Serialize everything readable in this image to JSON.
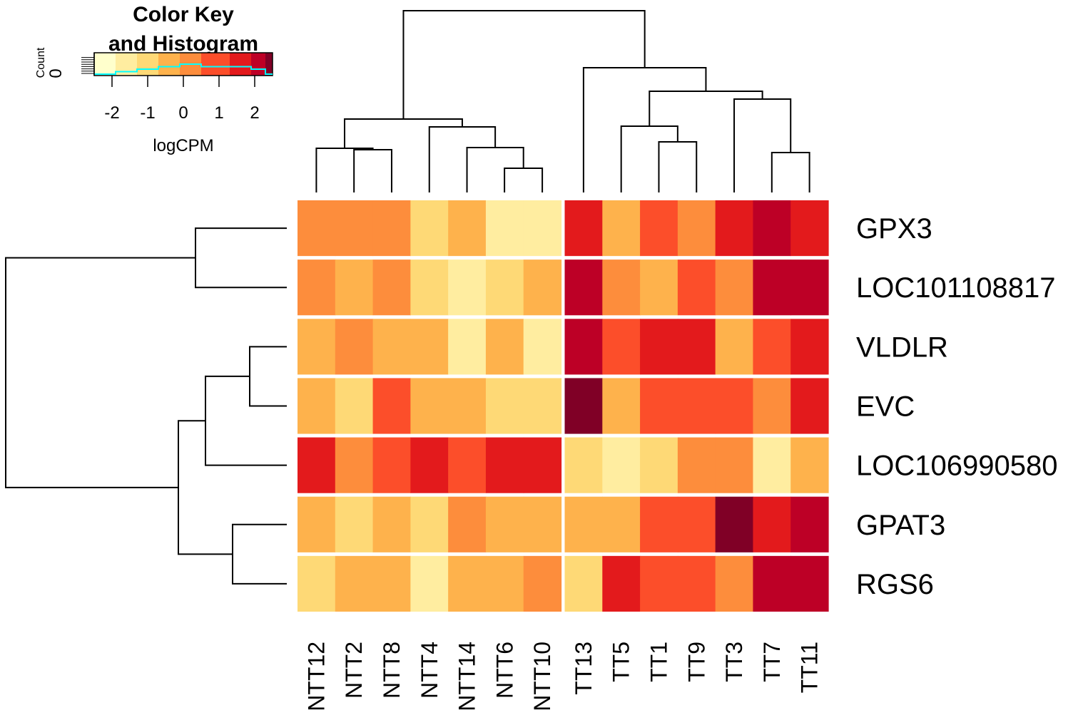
{
  "chart_data": {
    "type": "heatmap",
    "samples": [
      "NTT12",
      "NTT2",
      "NTT8",
      "NTT4",
      "NTT14",
      "NTT6",
      "NTT10",
      "TT13",
      "TT5",
      "TT1",
      "TT9",
      "TT3",
      "TT7",
      "TT11"
    ],
    "genes": [
      "GPX3",
      "LOC101108817",
      "VLDLR",
      "EVC",
      "LOC106990580",
      "GPAT3",
      "RGS6"
    ],
    "values": [
      [
        0.2,
        0.2,
        0.2,
        -1.0,
        -0.4,
        -1.6,
        -1.6,
        1.6,
        -0.4,
        1.0,
        0.2,
        1.6,
        2.1,
        1.6
      ],
      [
        0.2,
        -0.4,
        0.2,
        -1.0,
        -1.6,
        -1.0,
        -0.4,
        2.1,
        0.2,
        -0.4,
        1.0,
        0.2,
        2.1,
        2.1
      ],
      [
        -0.4,
        0.2,
        -0.4,
        -0.4,
        -1.6,
        -0.4,
        -1.6,
        2.1,
        1.0,
        1.6,
        1.6,
        -0.4,
        1.0,
        1.6
      ],
      [
        -0.4,
        -1.0,
        1.0,
        -0.4,
        -0.4,
        -1.0,
        -1.0,
        2.6,
        -0.4,
        1.0,
        1.0,
        1.0,
        0.2,
        1.6
      ],
      [
        1.6,
        0.2,
        1.0,
        1.6,
        1.0,
        1.6,
        1.6,
        -1.0,
        -1.6,
        -1.0,
        0.2,
        0.2,
        -1.6,
        -0.4
      ],
      [
        -0.4,
        -1.0,
        -0.4,
        -1.0,
        0.2,
        -0.4,
        -0.4,
        -0.4,
        -0.4,
        1.0,
        1.0,
        2.6,
        1.6,
        2.1
      ],
      [
        -1.0,
        -0.4,
        -0.4,
        -1.6,
        -0.4,
        -0.4,
        0.2,
        -1.0,
        1.6,
        1.0,
        1.0,
        0.2,
        2.1,
        2.1
      ]
    ],
    "color_breaks": [
      -2.5,
      -1.9,
      -1.3,
      -0.7,
      -0.1,
      0.5,
      1.3,
      1.9,
      2.3,
      2.8
    ],
    "palette": [
      "#ffffcc",
      "#ffeda0",
      "#fed976",
      "#feb24c",
      "#fd8d3c",
      "#fc4e2a",
      "#e31a1c",
      "#bd0026",
      "#800026"
    ],
    "color_key": {
      "title_line1": "Color Key",
      "title_line2": "and Histogram",
      "xlabel": "logCPM",
      "ylabel": "Count",
      "ytick": "0",
      "ticks": [
        "-2",
        "-1",
        "0",
        "1",
        "2"
      ],
      "tick_values": [
        -2,
        -1,
        0,
        1,
        2
      ],
      "xlim": [
        -2.5,
        2.5
      ],
      "histogram_color": "#00ffff"
    },
    "column_split_after": 7
  }
}
